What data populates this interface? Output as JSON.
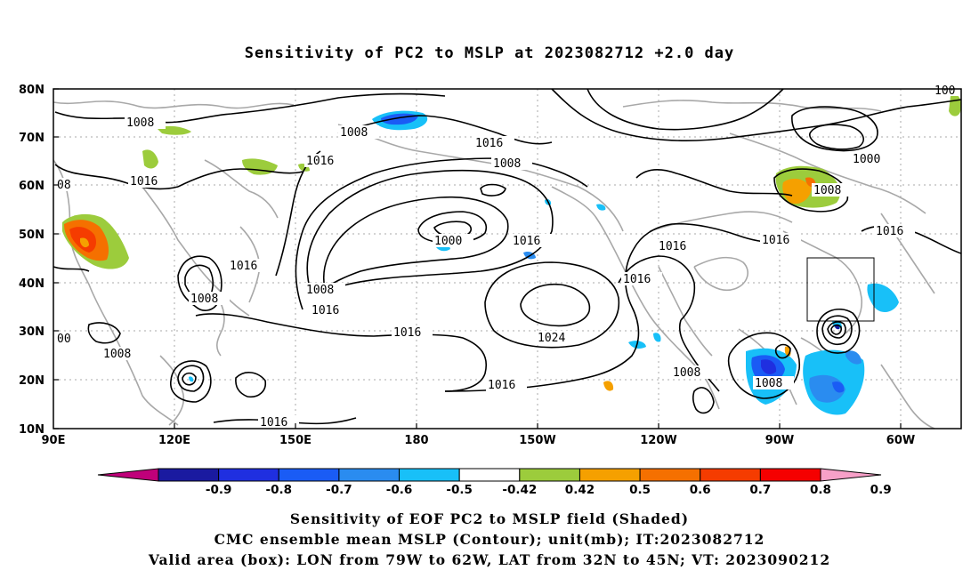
{
  "title": "Sensitivity of PC2 to MSLP at 2023082712 +2.0 day",
  "map": {
    "lat_labels": [
      "80N",
      "70N",
      "60N",
      "50N",
      "40N",
      "30N",
      "20N",
      "10N"
    ],
    "lon_labels": [
      "90E",
      "120E",
      "150E",
      "180",
      "150W",
      "120W",
      "90W",
      "60W"
    ],
    "contour_labels": [
      "1008",
      "1008",
      "1016",
      "1016",
      "1008",
      "1016",
      "1000",
      "1016",
      "1016",
      "1008",
      "1016",
      "1016",
      "1016",
      "1008",
      "1016",
      "1024",
      "1016",
      "1008",
      "1008",
      "1000",
      "1008",
      "1016",
      "1008",
      "1016",
      "100",
      "00",
      "08"
    ],
    "valid_box": {
      "lon_from": "79W",
      "lon_to": "62W",
      "lat_from": "32N",
      "lat_to": "45N"
    }
  },
  "colorbar": {
    "ticks": [
      "-0.9",
      "-0.8",
      "-0.7",
      "-0.6",
      "-0.5",
      "-0.42",
      "0.42",
      "0.5",
      "0.6",
      "0.7",
      "0.8",
      "0.9"
    ],
    "colors": [
      "#c0007a",
      "#1a1aa0",
      "#1f2fe0",
      "#1a5cf5",
      "#2a8cf0",
      "#18c0f8",
      "#ffffff",
      "#9ccc3c",
      "#f5a000",
      "#f57000",
      "#f53c00",
      "#f50000",
      "#f7a0c8"
    ]
  },
  "captions": {
    "line1": "Sensitivity of EOF PC2 to MSLP field (Shaded)",
    "line2": "CMC ensemble mean MSLP (Contour); unit(mb); IT:2023082712",
    "line3": "Valid area (box): LON from 79W to 62W, LAT from 32N to 45N; VT: 2023090212"
  }
}
